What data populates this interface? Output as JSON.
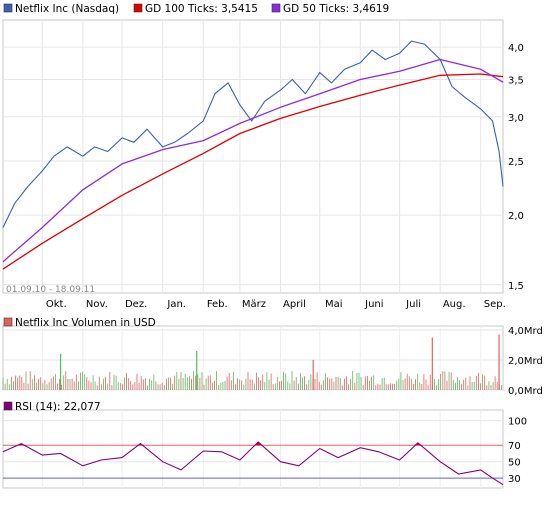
{
  "chart_data": [
    {
      "type": "line",
      "legend": [
        {
          "label": "Netflix Inc (Nasdaq)",
          "color": "#3a5fb8"
        },
        {
          "label": "GD 100 Ticks: 3,5415",
          "color": "#e00000"
        },
        {
          "label": "GD 50 Ticks: 3,4619",
          "color": "#8a2be2"
        }
      ],
      "date_range": "01.09.10 - 18.09.11",
      "y_scale": "log",
      "ylim": [
        1.45,
        4.4
      ],
      "y_ticks": [
        "4,0",
        "3,5",
        "3,0",
        "2,5",
        "2,0",
        "1,5"
      ],
      "y_tick_values": [
        4.0,
        3.5,
        3.0,
        2.5,
        2.0,
        1.5
      ],
      "x_ticks": [
        "Okt.",
        "Nov.",
        "Dez.",
        "Jan.",
        "Feb.",
        "März",
        "April",
        "Mai",
        "Juni",
        "Juli",
        "Aug.",
        "Sep."
      ],
      "x_tick_dates": [
        "2010-10-01",
        "2010-11-01",
        "2010-12-01",
        "2011-01-01",
        "2011-02-01",
        "2011-03-01",
        "2011-04-01",
        "2011-05-01",
        "2011-06-01",
        "2011-07-01",
        "2011-08-01",
        "2011-09-01"
      ],
      "x_range": [
        "2010-09-01",
        "2011-09-18"
      ],
      "grid": true,
      "series": [
        {
          "name": "Netflix Inc (Nasdaq)",
          "color": "#3a5fb8",
          "x": [
            "2010-09-01",
            "2010-09-10",
            "2010-09-20",
            "2010-10-01",
            "2010-10-10",
            "2010-10-20",
            "2010-11-01",
            "2010-11-10",
            "2010-11-20",
            "2010-12-01",
            "2010-12-10",
            "2010-12-20",
            "2011-01-01",
            "2011-01-10",
            "2011-01-20",
            "2011-02-01",
            "2011-02-10",
            "2011-02-20",
            "2011-03-01",
            "2011-03-10",
            "2011-03-20",
            "2011-04-01",
            "2011-04-10",
            "2011-04-20",
            "2011-05-01",
            "2011-05-10",
            "2011-05-20",
            "2011-06-01",
            "2011-06-10",
            "2011-06-20",
            "2011-07-01",
            "2011-07-10",
            "2011-07-20",
            "2011-08-01",
            "2011-08-10",
            "2011-08-20",
            "2011-09-01",
            "2011-09-10",
            "2011-09-15",
            "2011-09-18"
          ],
          "values": [
            1.9,
            2.1,
            2.25,
            2.4,
            2.55,
            2.65,
            2.55,
            2.65,
            2.6,
            2.75,
            2.7,
            2.85,
            2.65,
            2.7,
            2.8,
            2.95,
            3.3,
            3.45,
            3.15,
            2.95,
            3.2,
            3.35,
            3.5,
            3.3,
            3.6,
            3.45,
            3.65,
            3.75,
            3.95,
            3.8,
            3.9,
            4.1,
            4.05,
            3.8,
            3.4,
            3.25,
            3.1,
            2.95,
            2.6,
            2.25
          ]
        },
        {
          "name": "GD 100 Ticks: 3,5415",
          "color": "#e00000",
          "x": [
            "2010-09-01",
            "2010-10-01",
            "2010-11-01",
            "2010-12-01",
            "2011-01-01",
            "2011-02-01",
            "2011-03-01",
            "2011-04-01",
            "2011-05-01",
            "2011-06-01",
            "2011-07-01",
            "2011-08-01",
            "2011-09-01",
            "2011-09-18"
          ],
          "values": [
            1.6,
            1.78,
            1.97,
            2.17,
            2.37,
            2.58,
            2.8,
            2.98,
            3.13,
            3.28,
            3.42,
            3.56,
            3.58,
            3.54
          ]
        },
        {
          "name": "GD 50 Ticks: 3,4619",
          "color": "#8a2be2",
          "x": [
            "2010-09-01",
            "2010-10-01",
            "2010-11-01",
            "2010-12-01",
            "2011-01-01",
            "2011-02-01",
            "2011-03-01",
            "2011-04-01",
            "2011-05-01",
            "2011-06-01",
            "2011-07-01",
            "2011-08-01",
            "2011-09-01",
            "2011-09-18"
          ],
          "values": [
            1.65,
            1.9,
            2.22,
            2.47,
            2.62,
            2.72,
            2.92,
            3.12,
            3.3,
            3.5,
            3.62,
            3.8,
            3.65,
            3.46
          ]
        }
      ]
    },
    {
      "type": "bar",
      "legend": [
        {
          "label": "Netflix Inc Volumen in USD",
          "color": "#e06060"
        }
      ],
      "y_ticks": [
        "4,0Mrd",
        "2,0Mrd",
        "0,0Mrd"
      ],
      "y_tick_values": [
        4.0,
        2.0,
        0.0
      ],
      "ylim": [
        0,
        4.0
      ],
      "x_range": [
        "2010-09-01",
        "2011-09-18"
      ],
      "spikes": [
        {
          "x": "2010-10-15",
          "value": 2.4,
          "color": "#5cb85c"
        },
        {
          "x": "2011-01-27",
          "value": 2.6,
          "color": "#5cb85c"
        },
        {
          "x": "2011-04-26",
          "value": 2.0,
          "color": "#e06060"
        },
        {
          "x": "2011-07-26",
          "value": 3.5,
          "color": "#e06060"
        },
        {
          "x": "2011-09-15",
          "value": 3.7,
          "color": "#e06060"
        }
      ]
    },
    {
      "type": "line",
      "legend": [
        {
          "label": "RSI (14): 22,077",
          "color": "#800080"
        }
      ],
      "y_ticks": [
        "100",
        "70",
        "50",
        "30"
      ],
      "y_tick_values": [
        100,
        70,
        50,
        30
      ],
      "tick_colors": {
        "70": "#e06060",
        "30": "#6060e0"
      },
      "ylim": [
        18,
        108
      ],
      "levels": {
        "upper": 70,
        "lower": 30
      },
      "x_range": [
        "2010-09-01",
        "2011-09-18"
      ],
      "series": [
        {
          "name": "RSI (14)",
          "color": "#800080",
          "x": [
            "2010-09-01",
            "2010-09-15",
            "2010-10-01",
            "2010-10-15",
            "2010-11-01",
            "2010-11-15",
            "2010-12-01",
            "2010-12-15",
            "2011-01-01",
            "2011-01-15",
            "2011-02-01",
            "2011-02-15",
            "2011-03-01",
            "2011-03-15",
            "2011-04-01",
            "2011-04-15",
            "2011-05-01",
            "2011-05-15",
            "2011-06-01",
            "2011-06-15",
            "2011-07-01",
            "2011-07-15",
            "2011-08-01",
            "2011-08-15",
            "2011-09-01",
            "2011-09-10",
            "2011-09-18"
          ],
          "values": [
            62,
            72,
            58,
            60,
            45,
            52,
            55,
            72,
            50,
            40,
            63,
            62,
            52,
            74,
            50,
            45,
            66,
            55,
            67,
            62,
            52,
            73,
            50,
            35,
            40,
            30,
            22
          ]
        }
      ]
    }
  ]
}
